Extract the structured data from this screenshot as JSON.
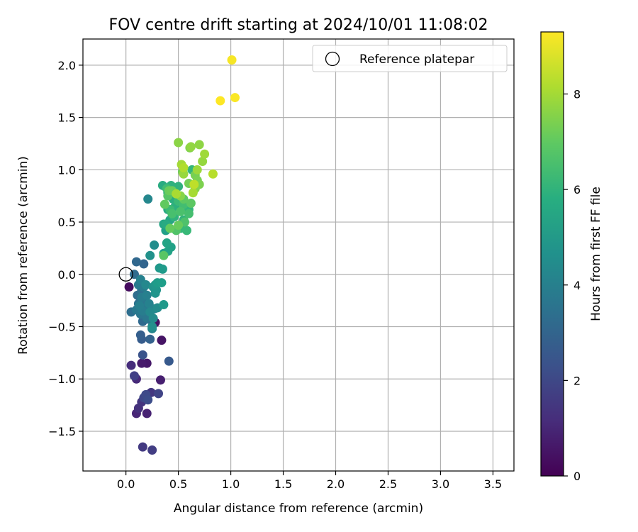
{
  "chart_data": {
    "type": "scatter",
    "title": "FOV centre drift starting at 2024/10/01 11:08:02",
    "xlabel": "Angular distance from reference (arcmin)",
    "ylabel": "Rotation from reference (arcmin)",
    "colorbar_label": "Hours from first FF file",
    "xlim": [
      -0.41,
      3.7
    ],
    "ylim": [
      -1.88,
      2.25
    ],
    "x_ticks": [
      "0.0",
      "0.5",
      "1.0",
      "1.5",
      "2.0",
      "2.5",
      "3.0",
      "3.5"
    ],
    "x_tick_values": [
      0,
      0.5,
      1,
      1.5,
      2,
      2.5,
      3,
      3.5
    ],
    "y_ticks": [
      "−1.5",
      "−1.0",
      "−0.5",
      "0.0",
      "0.5",
      "1.0",
      "1.5",
      "2.0"
    ],
    "y_tick_values": [
      -1.5,
      -1,
      -0.5,
      0,
      0.5,
      1,
      1.5,
      2
    ],
    "colorbar_range": [
      0,
      9.3
    ],
    "colorbar_ticks": [
      "0",
      "2",
      "4",
      "6",
      "8"
    ],
    "colorbar_tick_values": [
      0,
      2,
      4,
      6,
      8
    ],
    "colormap": "viridis",
    "grid": true,
    "legend": {
      "position": "top-right",
      "entries": [
        "Reference platepar"
      ]
    },
    "reference_point": {
      "x": 0.0,
      "y": 0.0
    },
    "points": [
      [
        0.03,
        -0.12,
        0.3
      ],
      [
        0.28,
        -0.46,
        0.4
      ],
      [
        0.34,
        -0.63,
        0.5
      ],
      [
        0.2,
        -0.85,
        0.6
      ],
      [
        0.15,
        -0.85,
        0.7
      ],
      [
        0.33,
        -1.01,
        0.8
      ],
      [
        0.2,
        -1.33,
        0.9
      ],
      [
        0.1,
        -1.33,
        1.0
      ],
      [
        0.1,
        -1.0,
        1.1
      ],
      [
        0.05,
        -0.87,
        1.2
      ],
      [
        0.12,
        -1.28,
        1.3
      ],
      [
        0.15,
        -1.22,
        1.4
      ],
      [
        0.24,
        -1.13,
        1.5
      ],
      [
        0.16,
        -1.65,
        1.6
      ],
      [
        0.25,
        -1.68,
        1.7
      ],
      [
        0.08,
        -0.97,
        1.8
      ],
      [
        0.31,
        -1.14,
        1.9
      ],
      [
        0.17,
        -1.18,
        2.0
      ],
      [
        0.19,
        -1.15,
        2.1
      ],
      [
        0.21,
        -1.2,
        2.2
      ],
      [
        0.16,
        -0.77,
        2.4
      ],
      [
        0.41,
        -0.83,
        2.6
      ],
      [
        0.15,
        -0.62,
        2.7
      ],
      [
        0.14,
        -0.58,
        2.8
      ],
      [
        0.23,
        -0.62,
        2.9
      ],
      [
        0.17,
        0.1,
        3.0
      ],
      [
        0.1,
        0.12,
        3.1
      ],
      [
        0.16,
        -0.45,
        3.15
      ],
      [
        0.22,
        -0.43,
        3.2
      ],
      [
        0.08,
        0.0,
        3.25
      ],
      [
        0.11,
        -0.2,
        3.3
      ],
      [
        0.05,
        -0.36,
        3.35
      ],
      [
        0.13,
        -0.1,
        3.4
      ],
      [
        0.15,
        -0.15,
        3.45
      ],
      [
        0.12,
        -0.28,
        3.5
      ],
      [
        0.16,
        -0.26,
        3.55
      ],
      [
        0.18,
        -0.3,
        3.6
      ],
      [
        0.14,
        -0.38,
        3.65
      ],
      [
        0.2,
        -0.42,
        3.7
      ],
      [
        0.1,
        -0.34,
        3.75
      ],
      [
        0.12,
        -0.1,
        3.8
      ],
      [
        0.17,
        -0.12,
        3.85
      ],
      [
        0.15,
        -0.22,
        3.9
      ],
      [
        0.16,
        -0.35,
        3.95
      ],
      [
        0.13,
        -0.3,
        4.0
      ],
      [
        0.2,
        -0.2,
        4.05
      ],
      [
        0.14,
        -0.05,
        4.1
      ],
      [
        0.22,
        -0.28,
        4.15
      ],
      [
        0.27,
        -0.33,
        4.2
      ],
      [
        0.25,
        -0.52,
        4.25
      ],
      [
        0.21,
        0.72,
        4.3
      ],
      [
        0.19,
        -0.1,
        4.35
      ],
      [
        0.23,
        -0.36,
        4.4
      ],
      [
        0.26,
        -0.42,
        4.45
      ],
      [
        0.3,
        -0.32,
        4.5
      ],
      [
        0.27,
        0.28,
        4.55
      ],
      [
        0.25,
        -0.5,
        4.6
      ],
      [
        0.23,
        0.18,
        4.7
      ],
      [
        0.26,
        -0.12,
        4.75
      ],
      [
        0.28,
        -0.18,
        4.8
      ],
      [
        0.29,
        -0.15,
        4.85
      ],
      [
        0.28,
        -0.1,
        4.9
      ],
      [
        0.32,
        0.06,
        4.95
      ],
      [
        0.36,
        -0.29,
        5.0
      ],
      [
        0.35,
        0.05,
        5.05
      ],
      [
        0.3,
        -0.08,
        5.1
      ],
      [
        0.34,
        -0.08,
        5.15
      ],
      [
        0.36,
        0.2,
        5.2
      ],
      [
        0.38,
        0.42,
        5.25
      ],
      [
        0.43,
        0.26,
        5.3
      ],
      [
        0.4,
        0.22,
        5.35
      ],
      [
        0.39,
        0.3,
        5.4
      ],
      [
        0.36,
        0.48,
        5.45
      ],
      [
        0.42,
        0.52,
        5.5
      ],
      [
        0.45,
        0.55,
        5.55
      ],
      [
        0.4,
        0.62,
        5.6
      ],
      [
        0.38,
        0.48,
        5.65
      ],
      [
        0.35,
        0.85,
        5.7
      ],
      [
        0.4,
        0.78,
        5.75
      ],
      [
        0.45,
        0.72,
        5.8
      ],
      [
        0.47,
        0.65,
        5.85
      ],
      [
        0.43,
        0.85,
        5.9
      ],
      [
        0.5,
        0.84,
        5.95
      ],
      [
        0.46,
        0.55,
        6.0
      ],
      [
        0.55,
        0.52,
        6.05
      ],
      [
        0.6,
        0.62,
        6.1
      ],
      [
        0.63,
        1.0,
        6.15
      ],
      [
        0.52,
        0.44,
        6.2
      ],
      [
        0.58,
        0.42,
        6.25
      ],
      [
        0.5,
        0.7,
        6.3
      ],
      [
        0.42,
        0.62,
        6.35
      ],
      [
        0.39,
        0.82,
        6.4
      ],
      [
        0.55,
        0.67,
        6.45
      ],
      [
        0.6,
        0.58,
        6.5
      ],
      [
        0.44,
        0.58,
        6.55
      ],
      [
        0.52,
        0.6,
        6.6
      ],
      [
        0.56,
        0.5,
        6.65
      ],
      [
        0.48,
        0.42,
        6.7
      ],
      [
        0.4,
        0.75,
        6.8
      ],
      [
        0.36,
        0.18,
        6.85
      ],
      [
        0.62,
        0.68,
        6.9
      ],
      [
        0.55,
        0.72,
        6.95
      ],
      [
        0.37,
        0.67,
        7.0
      ],
      [
        0.42,
        0.44,
        7.05
      ],
      [
        0.5,
        0.47,
        7.1
      ],
      [
        0.41,
        0.8,
        7.15
      ],
      [
        0.44,
        0.8,
        7.2
      ],
      [
        0.54,
        0.98,
        7.25
      ],
      [
        0.6,
        0.87,
        7.3
      ],
      [
        0.66,
        0.95,
        7.35
      ],
      [
        0.68,
        0.9,
        7.4
      ],
      [
        0.7,
        0.86,
        7.45
      ],
      [
        0.61,
        1.21,
        7.5
      ],
      [
        0.66,
        0.82,
        7.55
      ],
      [
        0.52,
        0.75,
        7.6
      ],
      [
        0.5,
        1.26,
        7.65
      ],
      [
        0.7,
        1.24,
        7.7
      ],
      [
        0.62,
        1.22,
        7.75
      ],
      [
        0.73,
        1.08,
        7.8
      ],
      [
        0.55,
        0.96,
        7.85
      ],
      [
        0.68,
        1.0,
        7.9
      ],
      [
        0.75,
        1.15,
        7.95
      ],
      [
        0.53,
        1.05,
        8.0
      ],
      [
        0.64,
        0.78,
        8.05
      ],
      [
        0.48,
        0.77,
        8.1
      ],
      [
        0.55,
        1.02,
        8.2
      ],
      [
        0.83,
        0.96,
        8.3
      ],
      [
        0.65,
        0.86,
        8.4
      ],
      [
        1.01,
        2.05,
        9.2
      ],
      [
        1.04,
        1.69,
        9.25
      ],
      [
        0.9,
        1.66,
        9.3
      ]
    ]
  }
}
